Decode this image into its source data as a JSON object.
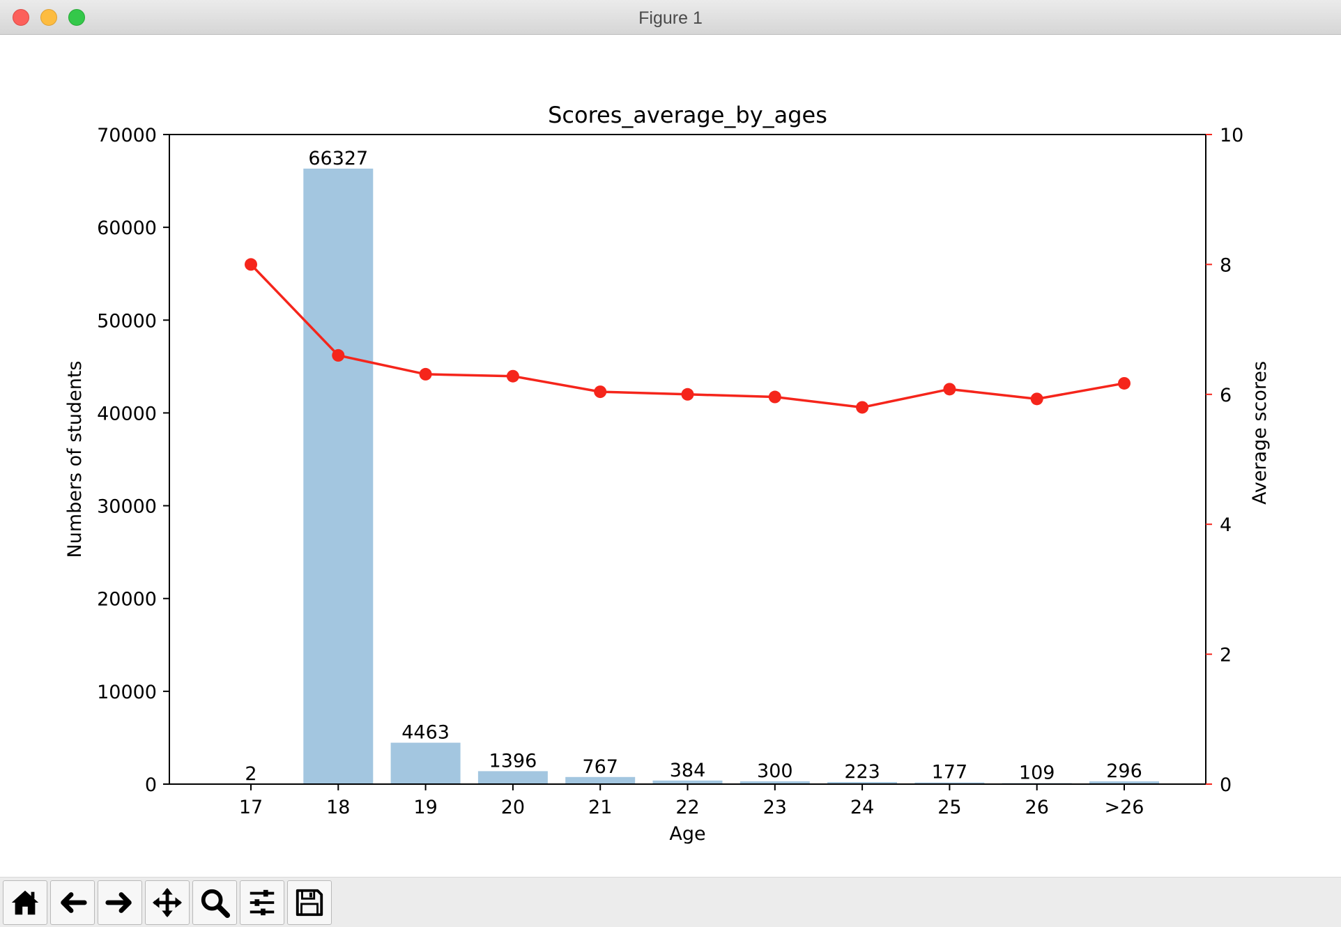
{
  "window": {
    "title": "Figure 1"
  },
  "toolbar": {
    "buttons": [
      {
        "name": "home-button",
        "icon": "home-icon"
      },
      {
        "name": "back-button",
        "icon": "arrow-left-icon"
      },
      {
        "name": "forward-button",
        "icon": "arrow-right-icon"
      },
      {
        "name": "pan-button",
        "icon": "move-icon"
      },
      {
        "name": "zoom-button",
        "icon": "magnifier-icon"
      },
      {
        "name": "configure-subplots-button",
        "icon": "sliders-icon"
      },
      {
        "name": "save-button",
        "icon": "floppy-disk-icon"
      }
    ]
  },
  "chart_data": {
    "type": "bar",
    "title": "Scores_average_by_ages",
    "xlabel": "Age",
    "ylabel": "Numbers of students",
    "y2label": "Average scores",
    "categories": [
      "17",
      "18",
      "19",
      "20",
      "21",
      "22",
      "23",
      "24",
      "25",
      "26",
      ">26"
    ],
    "ylim": [
      0,
      70000
    ],
    "yticks": [
      0,
      10000,
      20000,
      30000,
      40000,
      50000,
      60000,
      70000
    ],
    "y2lim": [
      0,
      10
    ],
    "y2ticks": [
      0,
      2,
      4,
      6,
      8,
      10
    ],
    "grid": false,
    "bar_color": "#a3c6e0",
    "line_color": "#f5251b",
    "series": [
      {
        "kind": "bar",
        "axis": "left",
        "values": [
          2,
          66327,
          4463,
          1396,
          767,
          384,
          300,
          223,
          177,
          109,
          296
        ],
        "value_labels": [
          "2",
          "66327",
          "4463",
          "1396",
          "767",
          "384",
          "300",
          "223",
          "177",
          "109",
          "296"
        ]
      },
      {
        "kind": "line",
        "axis": "right",
        "marker": "circle",
        "values": [
          8.0,
          6.6,
          6.31,
          6.28,
          6.04,
          6.0,
          5.96,
          5.8,
          6.08,
          5.93,
          6.17
        ]
      }
    ]
  }
}
